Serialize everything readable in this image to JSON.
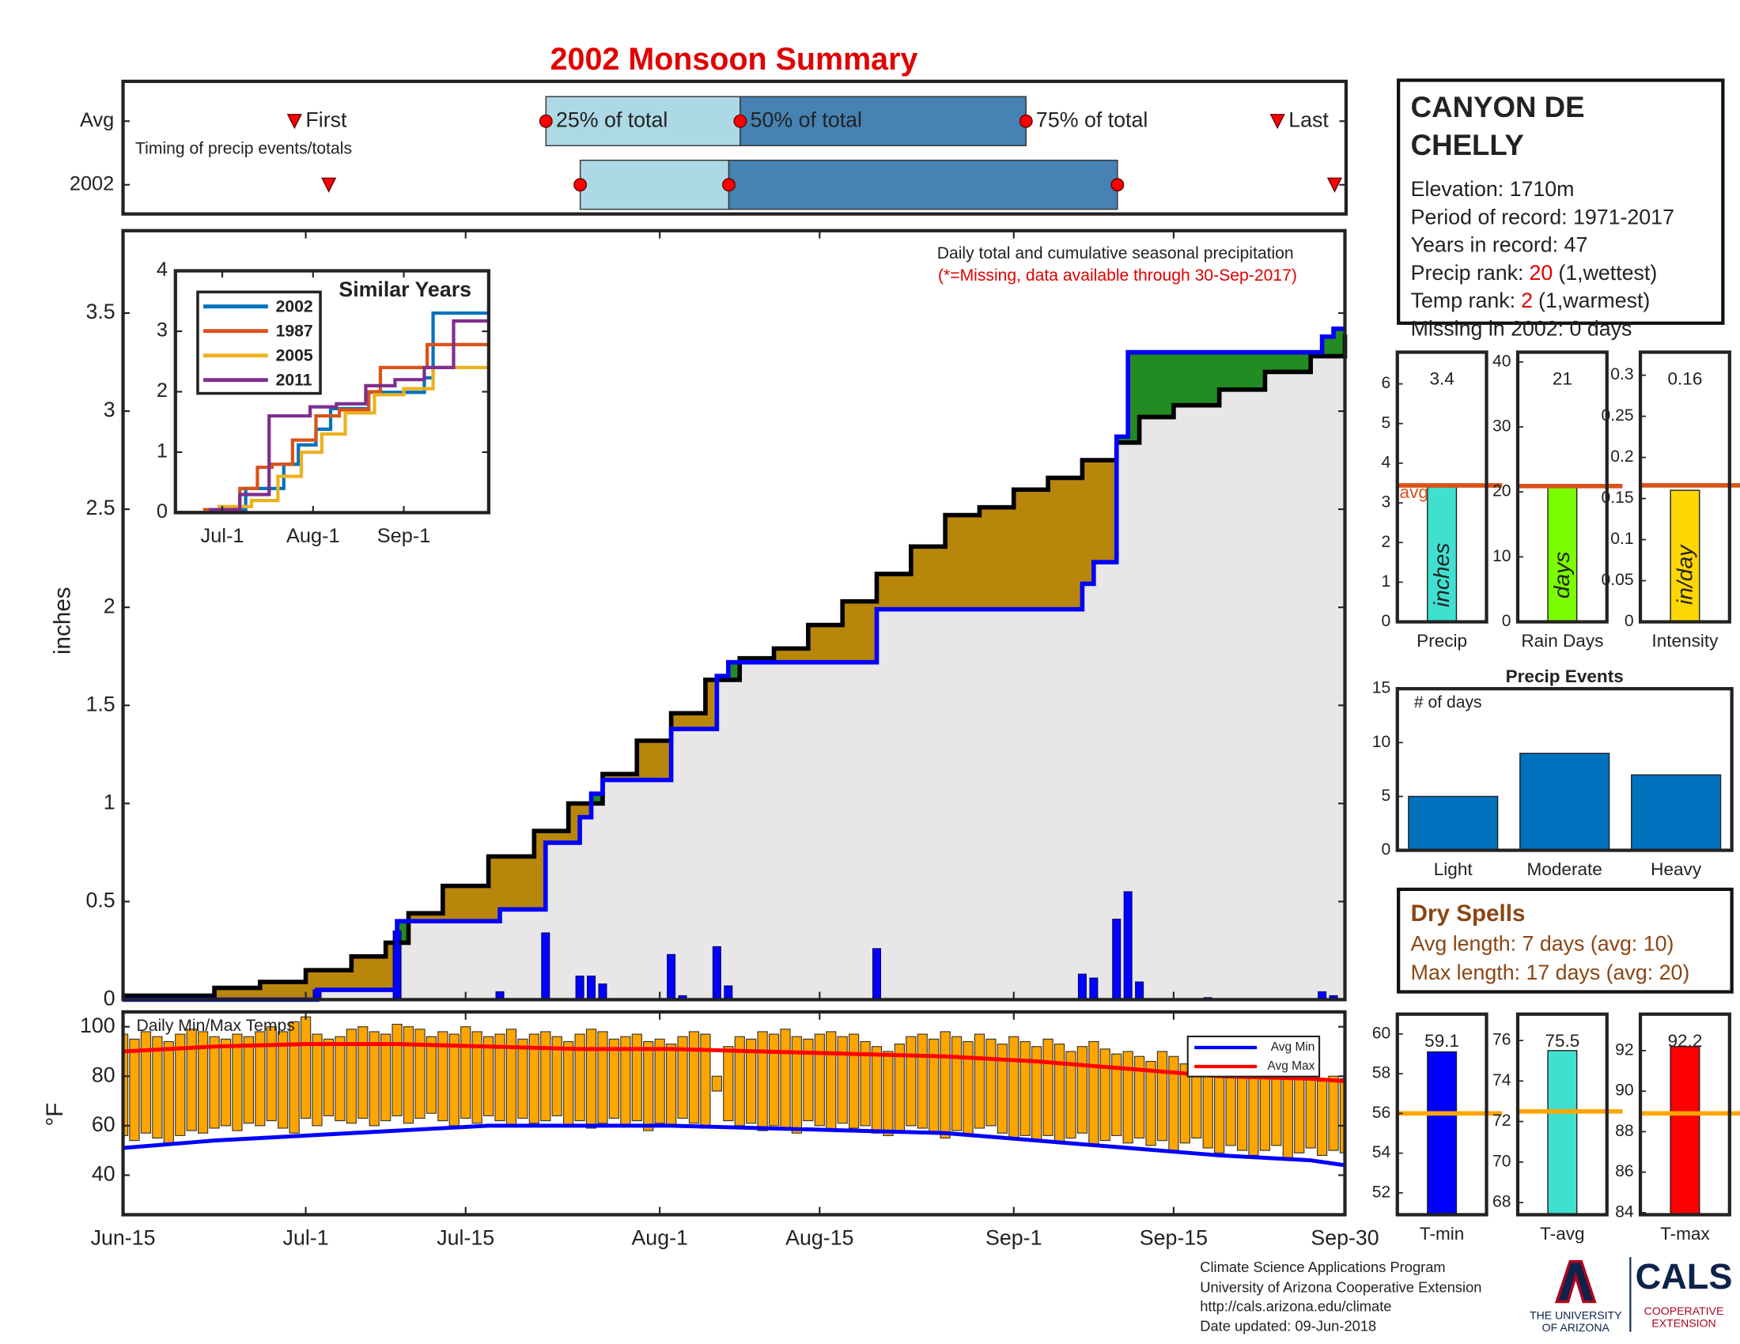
{
  "title": "2002 Monsoon Summary",
  "chart_data": [
    {
      "type": "timing",
      "rows": [
        {
          "label": "Avg",
          "values": [
            15,
            37,
            54,
            79,
            101
          ]
        },
        {
          "label": "2002",
          "values": [
            18,
            40,
            53,
            87,
            106
          ]
        }
      ],
      "markers": [
        "First",
        "25% of total",
        "50% of total",
        "75% of total",
        "Last"
      ],
      "note": "Timing of precip events/totals",
      "xlim": [
        0,
        107
      ],
      "colors": {
        "early": "#add8e6",
        "late": "#4682b4",
        "marker": "#ff0000"
      }
    },
    {
      "type": "step",
      "title": "Daily total and cumulative seasonal precipitation",
      "subtitle": "(*=Missing, data available through 30-Sep-2017)",
      "ylabel": "inches",
      "xlim": [
        0,
        107
      ],
      "ylim": [
        0,
        3.92
      ],
      "yticks": [
        0,
        0.5,
        1,
        1.5,
        2,
        2.5,
        3,
        3.5
      ],
      "series": [
        {
          "color": "#000000",
          "x": [
            0,
            8,
            12,
            16,
            20,
            23,
            25,
            28,
            32,
            36,
            39,
            42,
            45,
            48,
            51,
            54,
            57,
            60,
            63,
            66,
            69,
            72,
            75,
            78,
            81,
            84,
            87,
            89,
            92,
            96,
            100,
            104,
            107
          ],
          "values": [
            0.02,
            0.06,
            0.09,
            0.15,
            0.22,
            0.29,
            0.44,
            0.58,
            0.73,
            0.86,
            1.0,
            1.15,
            1.32,
            1.46,
            1.63,
            1.74,
            1.79,
            1.91,
            2.03,
            2.17,
            2.31,
            2.47,
            2.51,
            2.6,
            2.66,
            2.75,
            2.84,
            2.97,
            3.03,
            3.11,
            3.2,
            3.28,
            3.39
          ]
        },
        {
          "color": "#0000ff",
          "x": [
            0,
            17,
            24,
            33,
            37,
            40,
            41,
            42,
            48,
            52,
            53,
            66,
            84,
            85,
            87,
            88,
            105,
            106
          ],
          "values": [
            0,
            0.05,
            0.4,
            0.46,
            0.8,
            0.93,
            1.05,
            1.12,
            1.38,
            1.65,
            1.72,
            1.99,
            2.12,
            2.23,
            2.87,
            3.3,
            3.38,
            3.42
          ]
        }
      ],
      "daily": {
        "color": "#0000ff",
        "x": [
          17,
          24,
          33,
          37,
          40,
          41,
          42,
          48,
          49,
          52,
          53,
          66,
          84,
          85,
          87,
          88,
          89,
          95,
          105,
          106
        ],
        "values": [
          0.05,
          0.35,
          0.04,
          0.34,
          0.12,
          0.12,
          0.08,
          0.23,
          0.02,
          0.27,
          0.07,
          0.26,
          0.13,
          0.11,
          0.41,
          0.55,
          0.09,
          0.01,
          0.04,
          0.02
        ]
      },
      "fill_colors": {
        "deficit": "#b8860b",
        "surplus": "#228b22",
        "base": "#e8e6e6"
      }
    },
    {
      "type": "line",
      "title": "Similar Years",
      "xlim": [
        0,
        107
      ],
      "ylim": [
        0,
        4
      ],
      "yticks": [
        0,
        1,
        2,
        3,
        4
      ],
      "xticks": [
        {
          "value": 16,
          "label": "Jul-1"
        },
        {
          "value": 47,
          "label": "Aug-1"
        },
        {
          "value": 78,
          "label": "Sep-1"
        }
      ],
      "series": [
        {
          "name": "2002",
          "color": "#0072bd",
          "x": [
            0,
            17,
            24,
            37,
            42,
            48,
            53,
            66,
            85,
            88,
            107
          ],
          "values": [
            0,
            0.05,
            0.4,
            0.8,
            1.12,
            1.38,
            1.72,
            1.99,
            2.23,
            3.3,
            3.42
          ]
        },
        {
          "name": "1987",
          "color": "#d95319",
          "x": [
            0,
            10,
            22,
            28,
            33,
            40,
            48,
            56,
            66,
            70,
            86,
            107
          ],
          "values": [
            0,
            0.05,
            0.4,
            0.75,
            0.8,
            1.2,
            1.6,
            1.7,
            2.0,
            2.4,
            2.78,
            2.78
          ]
        },
        {
          "name": "2005",
          "color": "#edb120",
          "x": [
            0,
            15,
            26,
            35,
            43,
            50,
            58,
            68,
            78,
            88,
            107
          ],
          "values": [
            0,
            0.1,
            0.2,
            0.6,
            1.0,
            1.3,
            1.65,
            1.95,
            2.05,
            2.4,
            2.49
          ]
        },
        {
          "name": "2011",
          "color": "#7e2f8e",
          "x": [
            0,
            12,
            22,
            32,
            38,
            46,
            55,
            65,
            75,
            85,
            95,
            107
          ],
          "values": [
            0,
            0.05,
            0.3,
            1.6,
            1.6,
            1.75,
            1.8,
            2.1,
            2.2,
            2.4,
            3.17,
            3.17
          ]
        }
      ]
    },
    {
      "type": "temps",
      "title": "Daily Min/Max Temps",
      "ylabel": "°F",
      "xlim": [
        0,
        107
      ],
      "ylim": [
        24,
        106
      ],
      "yticks": [
        40,
        60,
        80,
        100
      ],
      "xticks": [
        {
          "value": 0,
          "label": "Jun-15"
        },
        {
          "value": 16,
          "label": "Jul-1"
        },
        {
          "value": 30,
          "label": "Jul-15"
        },
        {
          "value": 47,
          "label": "Aug-1"
        },
        {
          "value": 61,
          "label": "Aug-15"
        },
        {
          "value": 78,
          "label": "Sep-1"
        },
        {
          "value": 92,
          "label": "Sep-15"
        },
        {
          "value": 107,
          "label": "Sep-30"
        }
      ],
      "bar_color": "#ffa500",
      "x": [
        0,
        1,
        2,
        3,
        4,
        5,
        6,
        7,
        8,
        9,
        10,
        11,
        12,
        13,
        14,
        15,
        16,
        17,
        18,
        19,
        20,
        21,
        22,
        23,
        24,
        25,
        26,
        27,
        28,
        29,
        30,
        31,
        32,
        33,
        34,
        35,
        36,
        37,
        38,
        39,
        40,
        41,
        42,
        43,
        44,
        45,
        46,
        47,
        48,
        49,
        50,
        51,
        52,
        53,
        54,
        55,
        56,
        57,
        58,
        59,
        60,
        61,
        62,
        63,
        64,
        65,
        66,
        67,
        68,
        69,
        70,
        71,
        72,
        73,
        74,
        75,
        76,
        77,
        78,
        79,
        80,
        81,
        82,
        83,
        84,
        85,
        86,
        87,
        88,
        89,
        90,
        91,
        92,
        93,
        94,
        95,
        96,
        97,
        98,
        99,
        100,
        101,
        102,
        103,
        104,
        105,
        106,
        107
      ],
      "max": [
        97,
        95,
        98,
        96,
        94,
        97,
        99,
        98,
        96,
        95,
        97,
        96,
        98,
        100,
        98,
        102,
        104,
        97,
        95,
        96,
        99,
        100,
        98,
        97,
        101,
        100,
        99,
        96,
        98,
        97,
        100,
        98,
        96,
        97,
        99,
        95,
        97,
        98,
        96,
        94,
        97,
        99,
        98,
        95,
        96,
        97,
        94,
        95,
        93,
        96,
        98,
        97,
        80,
        92,
        96,
        95,
        98,
        97,
        99,
        96,
        95,
        97,
        98,
        96,
        97,
        94,
        92,
        90,
        93,
        96,
        97,
        95,
        98,
        96,
        94,
        97,
        95,
        93,
        96,
        94,
        92,
        95,
        93,
        90,
        92,
        94,
        91,
        89,
        90,
        88,
        86,
        90,
        88,
        85,
        87,
        84,
        82,
        83,
        86,
        84,
        80,
        82,
        85,
        83,
        81,
        78,
        80,
        79
      ],
      "min": [
        56,
        54,
        57,
        55,
        53,
        56,
        58,
        57,
        59,
        60,
        58,
        61,
        60,
        62,
        59,
        57,
        63,
        60,
        64,
        62,
        61,
        63,
        60,
        62,
        64,
        61,
        63,
        65,
        62,
        60,
        63,
        61,
        64,
        62,
        60,
        63,
        61,
        62,
        64,
        60,
        62,
        59,
        61,
        63,
        60,
        62,
        58,
        61,
        60,
        63,
        61,
        59,
        74,
        62,
        60,
        61,
        58,
        60,
        59,
        57,
        62,
        60,
        58,
        61,
        59,
        60,
        57,
        56,
        58,
        60,
        59,
        57,
        55,
        58,
        56,
        59,
        60,
        57,
        55,
        56,
        54,
        56,
        53,
        55,
        57,
        52,
        54,
        56,
        53,
        55,
        52,
        54,
        50,
        53,
        55,
        51,
        49,
        52,
        50,
        48,
        50,
        52,
        47,
        49,
        51,
        48,
        50,
        49
      ],
      "avg": {
        "x": [
          0,
          8,
          16,
          24,
          32,
          40,
          48,
          56,
          64,
          72,
          80,
          88,
          96,
          104,
          107
        ],
        "series": [
          {
            "name": "Avg Min",
            "color": "#0000ff",
            "values": [
              51,
              54,
              56,
              58,
              60,
              60,
              60,
              59,
              58,
              57,
              54,
              51,
              48,
              46,
              44
            ]
          },
          {
            "name": "Avg Max",
            "color": "#ff0000",
            "values": [
              90,
              92,
              93,
              93,
              92,
              91,
              91,
              90,
              89,
              88,
              86,
              83,
              80,
              79,
              78
            ]
          }
        ]
      },
      "legend": "top-right"
    },
    {
      "type": "bar",
      "categories": [
        "Precip"
      ],
      "values": [
        3.4
      ],
      "avg": 3.44,
      "avg_label": "avg",
      "unit": "inches",
      "color": "#40e0d0",
      "avg_color": "#d95319",
      "ylim": [
        0,
        6.8
      ],
      "yticks": [
        0,
        1,
        2,
        3,
        4,
        5,
        6
      ],
      "data_labels": true
    },
    {
      "type": "bar",
      "categories": [
        "Rain Days"
      ],
      "values": [
        21
      ],
      "avg": 20.9,
      "unit": "days",
      "color": "#7cfc00",
      "avg_color": "#d95319",
      "ylim": [
        0,
        41.5
      ],
      "yticks": [
        0,
        10,
        20,
        30,
        40
      ],
      "data_labels": true
    },
    {
      "type": "bar",
      "categories": [
        "Intensity"
      ],
      "values": [
        0.16
      ],
      "avg": 0.166,
      "unit": "in/day",
      "color": "#ffd700",
      "avg_color": "#d95319",
      "ylim": [
        0,
        0.328
      ],
      "yticks": [
        0,
        0.05,
        0.1,
        0.15,
        0.2,
        0.25,
        0.3
      ],
      "data_labels": true
    },
    {
      "type": "bar",
      "title": "Precip Events",
      "ylabel": "# of days",
      "categories": [
        "Light",
        "Moderate",
        "Heavy"
      ],
      "values": [
        5,
        9,
        7
      ],
      "color": "#0072bd",
      "ylim": [
        0,
        15
      ],
      "yticks": [
        0,
        5,
        10,
        15
      ],
      "data_labels": false
    },
    {
      "type": "bar",
      "categories": [
        "T-min"
      ],
      "values": [
        59.1
      ],
      "avg": 56,
      "color": "#0000ff",
      "avg_color": "#ffa500",
      "ylim": [
        50.9,
        61
      ],
      "yticks": [
        52,
        54,
        56,
        58,
        60
      ],
      "data_labels": true
    },
    {
      "type": "bar",
      "categories": [
        "T-avg"
      ],
      "values": [
        75.5
      ],
      "avg": 72.5,
      "color": "#40e0d0",
      "avg_color": "#ffa500",
      "ylim": [
        67.4,
        77.3
      ],
      "yticks": [
        68,
        70,
        72,
        74,
        76
      ],
      "data_labels": true
    },
    {
      "type": "bar",
      "categories": [
        "T-max"
      ],
      "values": [
        92.2
      ],
      "avg": 88.9,
      "color": "#ff0000",
      "avg_color": "#ffa500",
      "ylim": [
        83.9,
        93.8
      ],
      "yticks": [
        84,
        86,
        88,
        90,
        92
      ],
      "data_labels": true
    }
  ],
  "station": {
    "name_lines": [
      "CANYON DE",
      "CHELLY"
    ],
    "elevation": "Elevation: 1710m",
    "period": "Period of record: 1971-2017",
    "years": "Years in record: 47",
    "precip_rank": {
      "label": "Precip rank:",
      "value": 20,
      "note": "(1,wettest)"
    },
    "temp_rank": {
      "label": "Temp rank:",
      "value": 2,
      "note": "(1,warmest)"
    },
    "missing": "Missing in 2002: 0 days"
  },
  "dry_spells": {
    "title": "Dry Spells",
    "lines": [
      "Avg length: 7 days (avg: 10)",
      "Max length: 17 days (avg: 20)"
    ]
  },
  "footer": {
    "lines": [
      "Climate Science Applications Program",
      "University of Arizona Cooperative Extension",
      "http://cals.arizona.edu/climate",
      " Date updated: 09-Jun-2018"
    ],
    "logo_left": [
      "THE UNIVERSITY",
      "OF ARIZONA"
    ],
    "logo_right_title": "CALS",
    "logo_right": [
      "COOPERATIVE",
      "EXTENSION"
    ]
  }
}
